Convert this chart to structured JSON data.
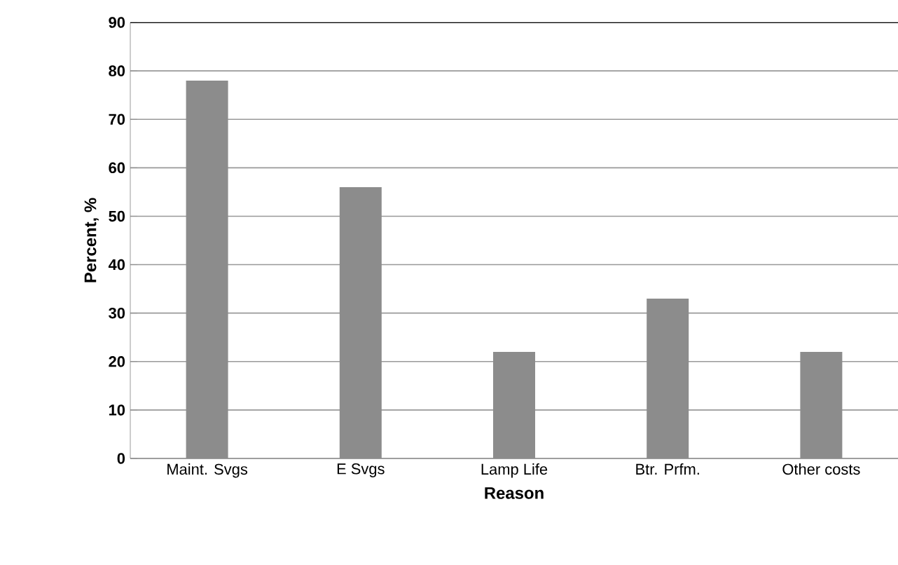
{
  "chart_data": {
    "type": "bar",
    "xlabel": "Reason",
    "ylabel": "Percent, %",
    "categories": [
      "Maint. Svgs",
      "E Svgs",
      "Lamp Life",
      "Btr. Prfm.",
      "Other costs"
    ],
    "values": [
      78,
      56,
      22,
      33,
      22
    ],
    "color": "#8c8c8c",
    "ylim": [
      0,
      90
    ],
    "yticks": [
      0,
      10,
      20,
      30,
      40,
      50,
      60,
      70,
      80,
      90
    ],
    "grid": "y"
  }
}
